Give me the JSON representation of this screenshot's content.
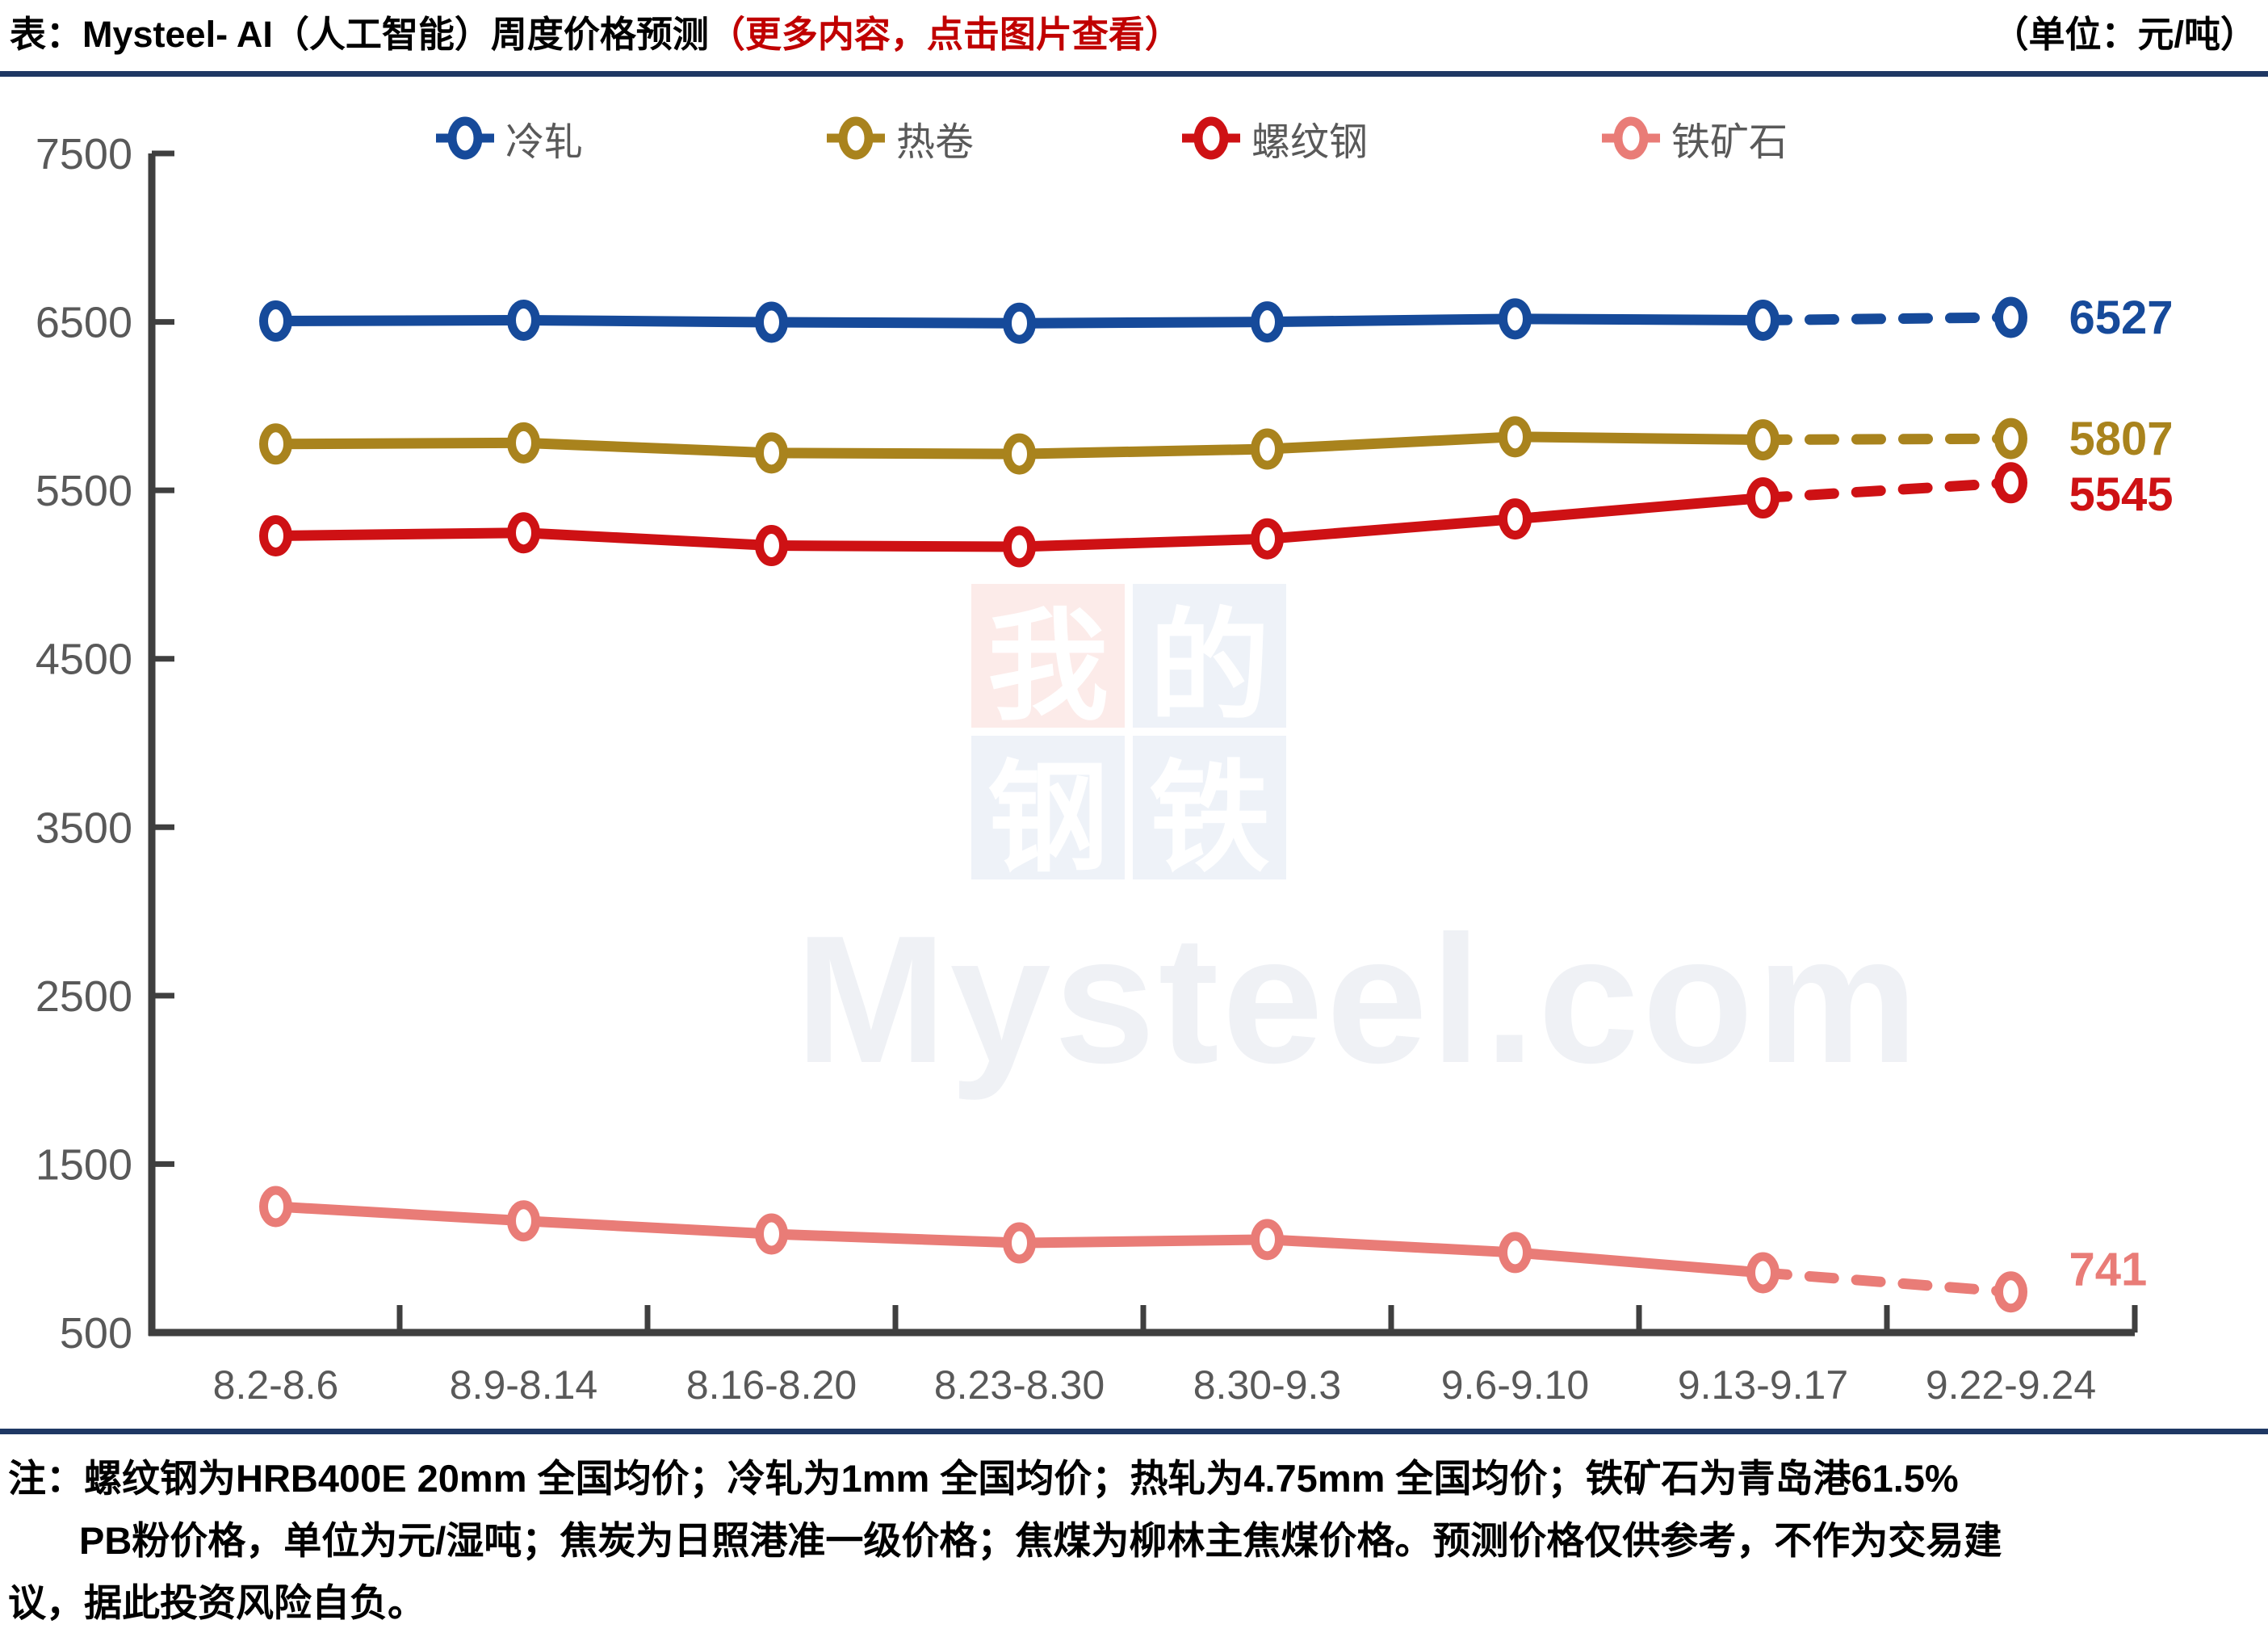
{
  "header": {
    "title_black": "表：Mysteel- AI（人工智能）周度价格预测",
    "title_red": "（更多内容，点击图片查看）",
    "unit": "（单位：元/吨）"
  },
  "watermark": {
    "chars": [
      "我",
      "的",
      "钢",
      "铁"
    ],
    "domain": "Mysteel.com",
    "pink": "#fcebe9",
    "blue": "#eef2f8"
  },
  "colors": {
    "rule": "#1f3864",
    "axis": "#3f3f3f",
    "tick_text": "#595959",
    "title_red": "#c00000"
  },
  "chart_data": {
    "type": "line",
    "title": "Mysteel-AI 周度价格预测",
    "ylabel": "元/吨",
    "categories": [
      "8.2-8.6",
      "8.9-8.14",
      "8.16-8.20",
      "8.23-8.30",
      "8.30-9.3",
      "9.6-9.10",
      "9.13-9.17",
      "9.22-9.24"
    ],
    "y_ticks": [
      7500,
      6500,
      5500,
      4500,
      3500,
      2500,
      1500,
      500
    ],
    "ylim": [
      500,
      7500
    ],
    "grid": false,
    "legend_position": "top",
    "forecast_from_index": 6,
    "series": [
      {
        "name": "冷轧",
        "color": "#164a9a",
        "values": [
          6505,
          6510,
          6498,
          6492,
          6500,
          6518,
          6510,
          6527
        ],
        "end_label": "6527"
      },
      {
        "name": "热卷",
        "color": "#a9831d",
        "values": [
          5775,
          5782,
          5722,
          5716,
          5745,
          5818,
          5800,
          5807
        ],
        "end_label": "5807"
      },
      {
        "name": "螺纹钢",
        "color": "#ce1114",
        "values": [
          5230,
          5248,
          5172,
          5165,
          5212,
          5330,
          5455,
          5545
        ],
        "end_label": "5545"
      },
      {
        "name": "铁矿石",
        "color": "#e97c77",
        "values": [
          1248,
          1163,
          1085,
          1032,
          1052,
          975,
          855,
          741
        ],
        "end_label": "741"
      }
    ]
  },
  "footer": {
    "line1": "注：螺纹钢为HRB400E 20mm 全国均价；冷轧为1mm 全国均价；热轧为4.75mm 全国均价；铁矿石为青岛港61.5%",
    "line2": "PB粉价格，单位为元/湿吨；焦炭为日照港准一级价格；焦煤为柳林主焦煤价格。预测价格仅供参考，不作为交易建",
    "line3": "议，据此投资风险自负。"
  }
}
